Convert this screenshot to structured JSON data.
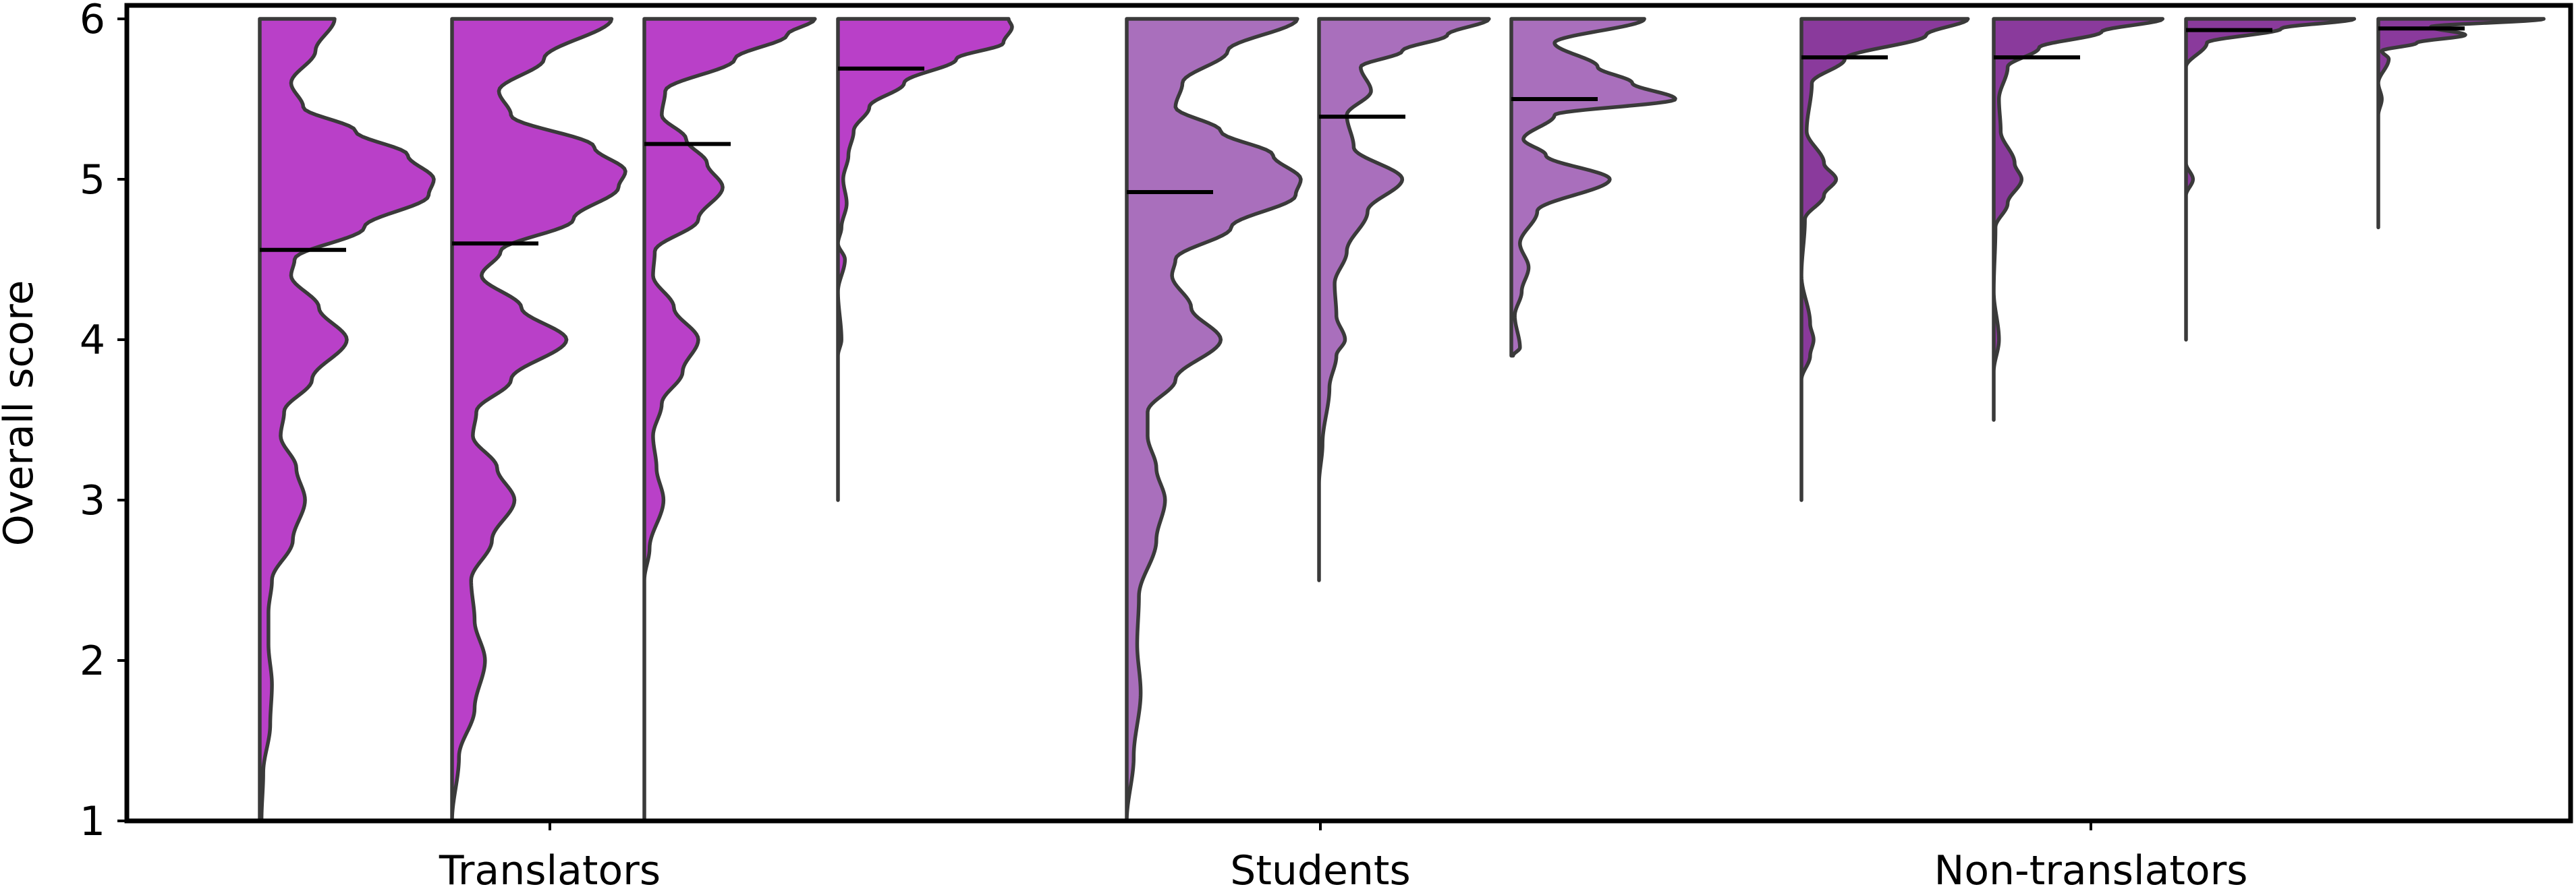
{
  "chart_data": {
    "type": "violin",
    "title": "",
    "xlabel": "",
    "ylabel": "Overall score",
    "ylim": [
      1,
      6
    ],
    "yticks": [
      1,
      2,
      3,
      4,
      5,
      6
    ],
    "categories": [
      "Translators",
      "Students",
      "Non-translators"
    ],
    "colors": {
      "Translators": "#b940c8",
      "Students": "#a96fbc",
      "Non-translators": "#8a3a9c",
      "outline": "#3a3a3a",
      "median": "#000000"
    },
    "series": [
      {
        "group": "Translators",
        "median": 4.56,
        "min": 1.0,
        "max": 6.0,
        "density": [
          [
            1.0,
            0.01
          ],
          [
            1.3,
            0.02
          ],
          [
            1.6,
            0.06
          ],
          [
            1.85,
            0.07
          ],
          [
            2.1,
            0.05
          ],
          [
            2.3,
            0.05
          ],
          [
            2.5,
            0.07
          ],
          [
            2.75,
            0.19
          ],
          [
            3.0,
            0.26
          ],
          [
            3.2,
            0.21
          ],
          [
            3.4,
            0.12
          ],
          [
            3.55,
            0.14
          ],
          [
            3.75,
            0.3
          ],
          [
            4.0,
            0.5
          ],
          [
            4.2,
            0.34
          ],
          [
            4.4,
            0.18
          ],
          [
            4.5,
            0.2
          ],
          [
            4.7,
            0.6
          ],
          [
            4.9,
            0.97
          ],
          [
            5.0,
            1.0
          ],
          [
            5.15,
            0.85
          ],
          [
            5.3,
            0.55
          ],
          [
            5.45,
            0.25
          ],
          [
            5.6,
            0.18
          ],
          [
            5.8,
            0.32
          ],
          [
            6.0,
            0.43
          ]
        ]
      },
      {
        "group": "Translators",
        "median": 4.6,
        "min": 1.0,
        "max": 6.0,
        "density": [
          [
            1.0,
            0.0
          ],
          [
            1.4,
            0.04
          ],
          [
            1.7,
            0.13
          ],
          [
            2.0,
            0.19
          ],
          [
            2.25,
            0.13
          ],
          [
            2.5,
            0.11
          ],
          [
            2.75,
            0.23
          ],
          [
            3.0,
            0.36
          ],
          [
            3.2,
            0.26
          ],
          [
            3.4,
            0.12
          ],
          [
            3.55,
            0.14
          ],
          [
            3.75,
            0.34
          ],
          [
            4.0,
            0.66
          ],
          [
            4.2,
            0.4
          ],
          [
            4.4,
            0.17
          ],
          [
            4.55,
            0.28
          ],
          [
            4.75,
            0.7
          ],
          [
            4.95,
            0.96
          ],
          [
            5.05,
            1.0
          ],
          [
            5.2,
            0.82
          ],
          [
            5.4,
            0.34
          ],
          [
            5.55,
            0.27
          ],
          [
            5.75,
            0.53
          ],
          [
            6.0,
            0.92
          ]
        ]
      },
      {
        "group": "Translators",
        "median": 5.22,
        "min": 1.0,
        "max": 6.0,
        "density": [
          [
            1.0,
            0.0
          ],
          [
            2.5,
            0.0
          ],
          [
            2.7,
            0.03
          ],
          [
            3.0,
            0.11
          ],
          [
            3.2,
            0.07
          ],
          [
            3.4,
            0.05
          ],
          [
            3.6,
            0.1
          ],
          [
            3.8,
            0.22
          ],
          [
            4.0,
            0.31
          ],
          [
            4.2,
            0.17
          ],
          [
            4.4,
            0.05
          ],
          [
            4.55,
            0.06
          ],
          [
            4.75,
            0.31
          ],
          [
            4.95,
            0.45
          ],
          [
            5.1,
            0.36
          ],
          [
            5.25,
            0.24
          ],
          [
            5.4,
            0.1
          ],
          [
            5.55,
            0.12
          ],
          [
            5.75,
            0.52
          ],
          [
            5.9,
            0.82
          ],
          [
            6.0,
            0.98
          ]
        ]
      },
      {
        "group": "Translators",
        "median": 5.69,
        "min": 3.0,
        "max": 6.0,
        "density": [
          [
            3.0,
            0.0
          ],
          [
            3.9,
            0.0
          ],
          [
            4.0,
            0.02
          ],
          [
            4.3,
            0.0
          ],
          [
            4.5,
            0.04
          ],
          [
            4.6,
            0.0
          ],
          [
            4.7,
            0.02
          ],
          [
            4.85,
            0.05
          ],
          [
            5.0,
            0.03
          ],
          [
            5.15,
            0.06
          ],
          [
            5.3,
            0.09
          ],
          [
            5.45,
            0.18
          ],
          [
            5.6,
            0.38
          ],
          [
            5.75,
            0.68
          ],
          [
            5.85,
            0.95
          ],
          [
            5.95,
            1.0
          ],
          [
            6.0,
            0.98
          ]
        ]
      },
      {
        "group": "Students",
        "median": 4.92,
        "min": 1.0,
        "max": 6.0,
        "density": [
          [
            1.0,
            0.0
          ],
          [
            1.4,
            0.04
          ],
          [
            1.8,
            0.08
          ],
          [
            2.1,
            0.06
          ],
          [
            2.4,
            0.07
          ],
          [
            2.75,
            0.17
          ],
          [
            3.0,
            0.22
          ],
          [
            3.2,
            0.17
          ],
          [
            3.4,
            0.12
          ],
          [
            3.55,
            0.12
          ],
          [
            3.75,
            0.28
          ],
          [
            4.0,
            0.54
          ],
          [
            4.2,
            0.37
          ],
          [
            4.4,
            0.26
          ],
          [
            4.5,
            0.28
          ],
          [
            4.7,
            0.6
          ],
          [
            4.9,
            0.97
          ],
          [
            5.0,
            1.0
          ],
          [
            5.15,
            0.84
          ],
          [
            5.3,
            0.54
          ],
          [
            5.45,
            0.28
          ],
          [
            5.6,
            0.32
          ],
          [
            5.8,
            0.58
          ],
          [
            6.0,
            0.98
          ]
        ]
      },
      {
        "group": "Students",
        "median": 5.39,
        "min": 2.5,
        "max": 6.0,
        "density": [
          [
            2.5,
            0.0
          ],
          [
            3.1,
            0.0
          ],
          [
            3.35,
            0.02
          ],
          [
            3.7,
            0.06
          ],
          [
            3.9,
            0.1
          ],
          [
            4.0,
            0.15
          ],
          [
            4.15,
            0.1
          ],
          [
            4.35,
            0.09
          ],
          [
            4.55,
            0.16
          ],
          [
            4.8,
            0.28
          ],
          [
            5.0,
            0.48
          ],
          [
            5.2,
            0.2
          ],
          [
            5.4,
            0.16
          ],
          [
            5.55,
            0.3
          ],
          [
            5.7,
            0.24
          ],
          [
            5.8,
            0.48
          ],
          [
            5.9,
            0.74
          ],
          [
            6.0,
            0.98
          ]
        ]
      },
      {
        "group": "Students",
        "median": 5.5,
        "min": 3.9,
        "max": 6.0,
        "density": [
          [
            3.9,
            0.01
          ],
          [
            3.95,
            0.05
          ],
          [
            4.15,
            0.02
          ],
          [
            4.3,
            0.06
          ],
          [
            4.45,
            0.1
          ],
          [
            4.6,
            0.05
          ],
          [
            4.8,
            0.15
          ],
          [
            5.0,
            0.57
          ],
          [
            5.15,
            0.2
          ],
          [
            5.25,
            0.07
          ],
          [
            5.4,
            0.25
          ],
          [
            5.5,
            0.95
          ],
          [
            5.6,
            0.7
          ],
          [
            5.7,
            0.5
          ],
          [
            5.85,
            0.25
          ],
          [
            6.0,
            0.77
          ]
        ]
      },
      {
        "group": "Non-translators",
        "median": 5.76,
        "min": 3.0,
        "max": 6.0,
        "density": [
          [
            3.0,
            0.0
          ],
          [
            3.75,
            0.0
          ],
          [
            3.9,
            0.05
          ],
          [
            4.0,
            0.07
          ],
          [
            4.1,
            0.05
          ],
          [
            4.4,
            0.0
          ],
          [
            4.75,
            0.02
          ],
          [
            4.9,
            0.13
          ],
          [
            5.0,
            0.2
          ],
          [
            5.1,
            0.13
          ],
          [
            5.3,
            0.03
          ],
          [
            5.6,
            0.06
          ],
          [
            5.75,
            0.25
          ],
          [
            5.9,
            0.72
          ],
          [
            6.0,
            0.96
          ]
        ]
      },
      {
        "group": "Non-translators",
        "median": 5.76,
        "min": 3.5,
        "max": 6.0,
        "density": [
          [
            3.5,
            0.0
          ],
          [
            3.8,
            0.0
          ],
          [
            4.0,
            0.03
          ],
          [
            4.3,
            0.0
          ],
          [
            4.7,
            0.01
          ],
          [
            4.85,
            0.08
          ],
          [
            5.0,
            0.16
          ],
          [
            5.1,
            0.12
          ],
          [
            5.3,
            0.04
          ],
          [
            5.5,
            0.03
          ],
          [
            5.7,
            0.08
          ],
          [
            5.82,
            0.26
          ],
          [
            5.92,
            0.62
          ],
          [
            6.0,
            0.97
          ]
        ]
      },
      {
        "group": "Non-translators",
        "median": 5.93,
        "min": 4.0,
        "max": 6.0,
        "density": [
          [
            4.0,
            0.0
          ],
          [
            4.9,
            0.0
          ],
          [
            5.0,
            0.04
          ],
          [
            5.1,
            0.0
          ],
          [
            5.7,
            0.0
          ],
          [
            5.85,
            0.12
          ],
          [
            5.94,
            0.55
          ],
          [
            6.0,
            0.97
          ]
        ]
      },
      {
        "group": "Non-translators",
        "median": 5.94,
        "min": 4.7,
        "max": 6.0,
        "density": [
          [
            4.7,
            0.0
          ],
          [
            5.4,
            0.0
          ],
          [
            5.5,
            0.02
          ],
          [
            5.6,
            0.0
          ],
          [
            5.75,
            0.06
          ],
          [
            5.8,
            0.02
          ],
          [
            5.85,
            0.22
          ],
          [
            5.9,
            0.5
          ],
          [
            5.95,
            0.3
          ],
          [
            6.0,
            0.95
          ]
        ]
      }
    ]
  }
}
